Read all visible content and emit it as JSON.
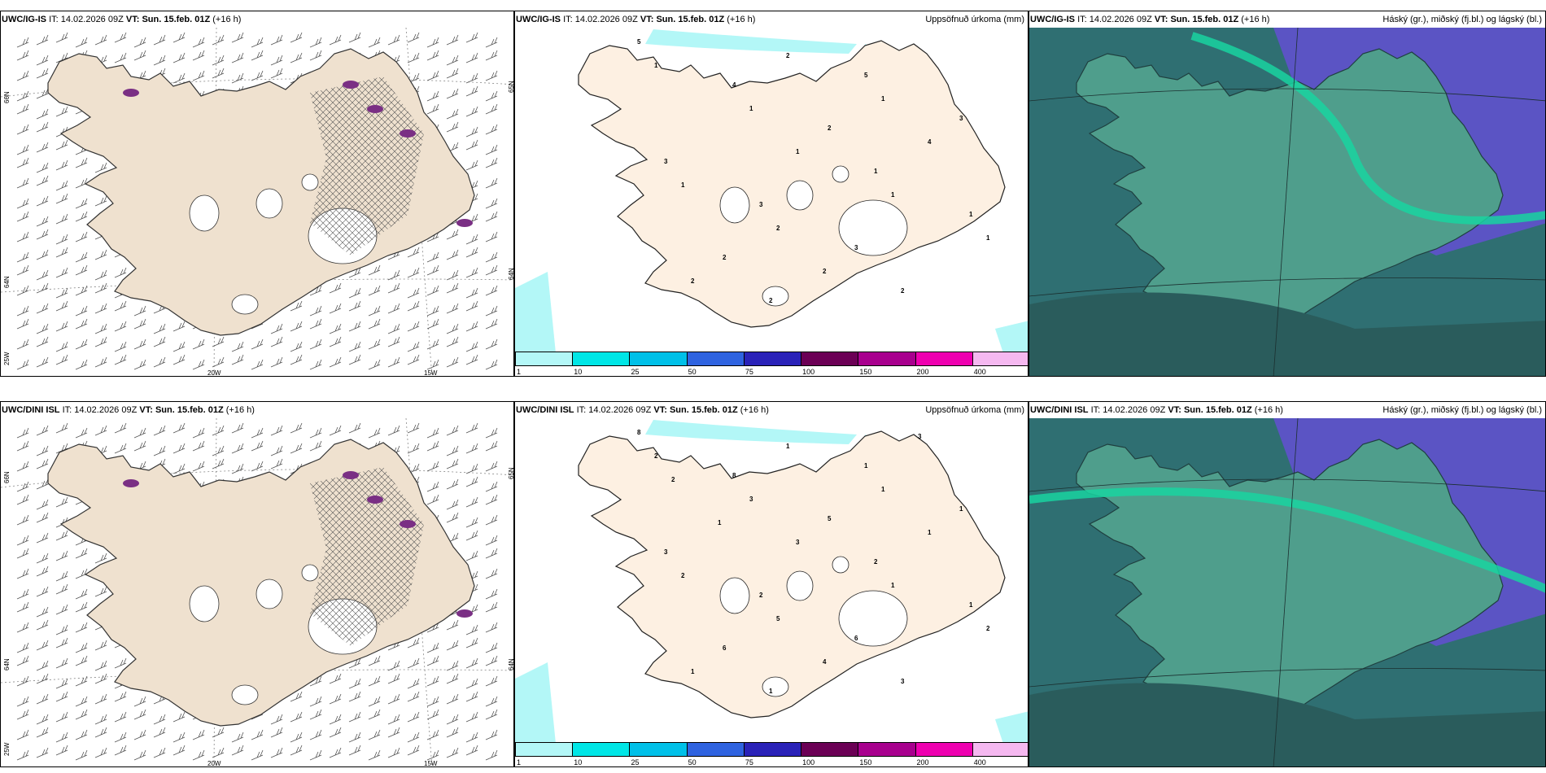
{
  "rows": [
    {
      "model": "UWC/IG-IS",
      "it_label": "IT:",
      "it_value": "14.02.2026 09Z",
      "vt_label": "VT:",
      "vt_value": "Sun. 15.feb. 01Z",
      "lead": "(+16 h)"
    },
    {
      "model": "UWC/DINI ISL",
      "it_label": "IT:",
      "it_value": "14.02.2026 09Z",
      "vt_label": "VT:",
      "vt_value": "Sun. 15.feb. 01Z",
      "lead": "(+16 h)"
    }
  ],
  "precip_title": "Uppsöfnuð úrkoma (mm)",
  "cloud_title": "Háský (gr.), miðský (fj.bl.) og lágský (bl.)",
  "lat_labels": [
    "66N",
    "64N",
    "25W"
  ],
  "lat_labels_right": [
    "65N",
    "64N"
  ],
  "lon_labels": [
    "20W",
    "15W"
  ],
  "colorbar": {
    "ticks": [
      "1",
      "10",
      "25",
      "50",
      "75",
      "100",
      "150",
      "200",
      "400"
    ],
    "colors": [
      "#b3f7f7",
      "#00e6e6",
      "#00c0e8",
      "#2f63e0",
      "#2a22b8",
      "#6b0055",
      "#a8008e",
      "#ee00b0",
      "#f5b8f0"
    ]
  },
  "precip_numbers_top": [
    "5",
    "4",
    "2",
    "1",
    "1",
    "2",
    "2",
    "5",
    "3",
    "3",
    "3",
    "3",
    "2",
    "1",
    "1",
    "1",
    "1",
    "1",
    "2",
    "2",
    "1",
    "4",
    "1",
    "2",
    "2"
  ],
  "precip_numbers_bottom": [
    "8",
    "8",
    "5",
    "2",
    "1",
    "6",
    "1",
    "1",
    "1",
    "3",
    "2",
    "6",
    "3",
    "2",
    "3",
    "3",
    "1",
    "2",
    "1",
    "1",
    "1",
    "1",
    "2",
    "5",
    "4",
    "3",
    "2",
    "1"
  ]
}
